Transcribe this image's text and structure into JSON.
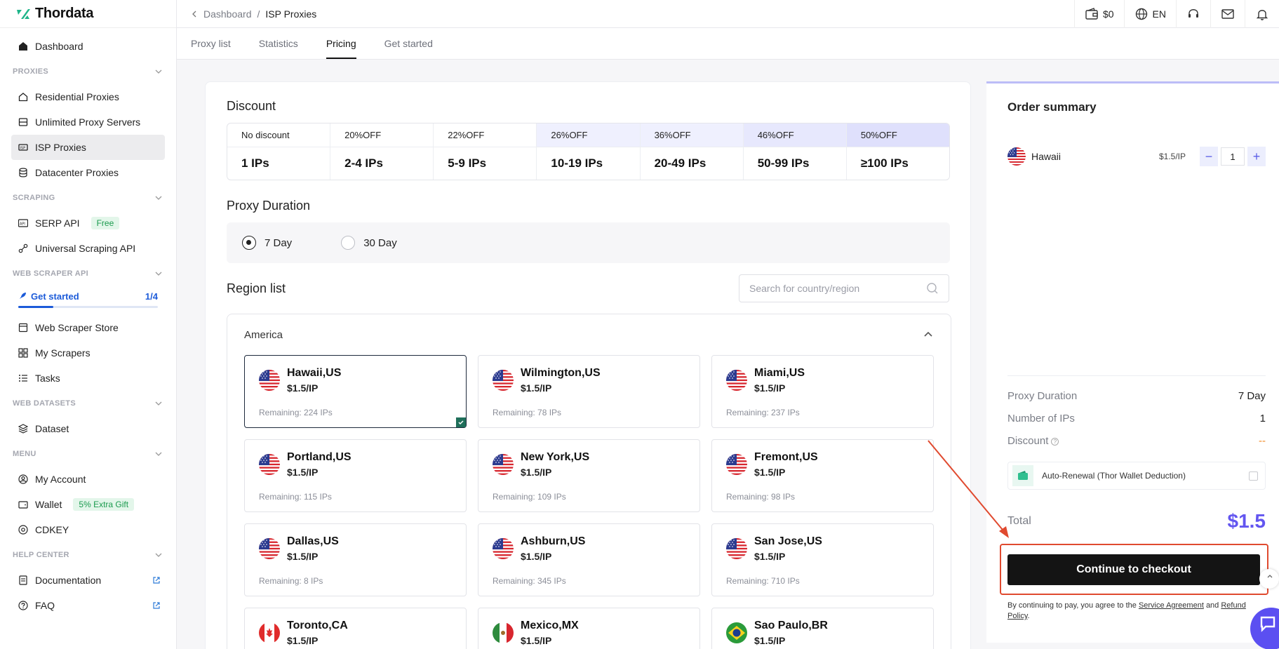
{
  "app": {
    "logo_text": "Thordata"
  },
  "breadcrumb": {
    "parent": "Dashboard",
    "separator": "/",
    "current": "ISP Proxies"
  },
  "topbar": {
    "wallet_amount": "$0",
    "language": "EN"
  },
  "sidebar": {
    "dashboard": "Dashboard",
    "sections": {
      "proxies": "PROXIES",
      "scraping": "SCRAPING",
      "web_scraper_api": "WEB SCRAPER API",
      "web_datasets": "WEB DATASETS",
      "menu": "MENU",
      "help_center": "HELP CENTER"
    },
    "proxies_items": [
      "Residential Proxies",
      "Unlimited Proxy Servers",
      "ISP Proxies",
      "Datacenter Proxies"
    ],
    "scraping_items": [
      "SERP API",
      "Universal Scraping API"
    ],
    "serp_badge": "Free",
    "get_started": {
      "label": "Get started",
      "progress_text": "1/4",
      "progress": 0.25
    },
    "scraper_items": [
      "Web Scraper Store",
      "My Scrapers",
      "Tasks"
    ],
    "dataset_items": [
      "Dataset"
    ],
    "menu_items": [
      "My Account",
      "Wallet",
      "CDKEY"
    ],
    "wallet_badge": "5% Extra Gift",
    "help_items": [
      "Documentation",
      "FAQ"
    ]
  },
  "tabs": [
    "Proxy list",
    "Statistics",
    "Pricing",
    "Get started"
  ],
  "active_tab": "Pricing",
  "discount": {
    "title": "Discount",
    "columns": [
      {
        "head": "No discount",
        "value": "1 IPs"
      },
      {
        "head": "20%OFF",
        "value": "2-4 IPs"
      },
      {
        "head": "22%OFF",
        "value": "5-9 IPs"
      },
      {
        "head": "26%OFF",
        "value": "10-19 IPs"
      },
      {
        "head": "36%OFF",
        "value": "20-49 IPs"
      },
      {
        "head": "46%OFF",
        "value": "50-99 IPs"
      },
      {
        "head": "50%OFF",
        "value": "≥100 IPs"
      }
    ]
  },
  "duration": {
    "title": "Proxy Duration",
    "options": [
      "7 Day",
      "30 Day"
    ],
    "selected": "7 Day"
  },
  "region": {
    "title": "Region list",
    "search_placeholder": "Search for country/region",
    "group": "America",
    "cards": [
      {
        "name": "Hawaii,US",
        "price": "$1.5/IP",
        "remaining": "Remaining: 224 IPs",
        "flag": "us",
        "selected": true
      },
      {
        "name": "Wilmington,US",
        "price": "$1.5/IP",
        "remaining": "Remaining: 78 IPs",
        "flag": "us"
      },
      {
        "name": "Miami,US",
        "price": "$1.5/IP",
        "remaining": "Remaining: 237 IPs",
        "flag": "us"
      },
      {
        "name": "Portland,US",
        "price": "$1.5/IP",
        "remaining": "Remaining: 115 IPs",
        "flag": "us"
      },
      {
        "name": "New York,US",
        "price": "$1.5/IP",
        "remaining": "Remaining: 109 IPs",
        "flag": "us"
      },
      {
        "name": "Fremont,US",
        "price": "$1.5/IP",
        "remaining": "Remaining: 98 IPs",
        "flag": "us"
      },
      {
        "name": "Dallas,US",
        "price": "$1.5/IP",
        "remaining": "Remaining: 8 IPs",
        "flag": "us"
      },
      {
        "name": "Ashburn,US",
        "price": "$1.5/IP",
        "remaining": "Remaining: 345 IPs",
        "flag": "us"
      },
      {
        "name": "San Jose,US",
        "price": "$1.5/IP",
        "remaining": "Remaining: 710 IPs",
        "flag": "us"
      },
      {
        "name": "Toronto,CA",
        "price": "$1.5/IP",
        "remaining": "",
        "flag": "ca"
      },
      {
        "name": "Mexico,MX",
        "price": "$1.5/IP",
        "remaining": "",
        "flag": "mx"
      },
      {
        "name": "Sao Paulo,BR",
        "price": "$1.5/IP",
        "remaining": "",
        "flag": "br"
      }
    ]
  },
  "summary": {
    "title": "Order summary",
    "item": {
      "name": "Hawaii",
      "price": "$1.5/IP",
      "quantity": "1",
      "minus": "−",
      "plus": "+"
    },
    "proxy_duration_label": "Proxy Duration",
    "proxy_duration_value": "7 Day",
    "ips_label": "Number of IPs",
    "ips_value": "1",
    "discount_label": "Discount",
    "discount_value": "--",
    "auto_renewal": "Auto-Renewal (Thor Wallet Deduction)",
    "total_label": "Total",
    "total_value": "$1.5",
    "checkout_label": "Continue to checkout",
    "terms_prefix": "By continuing to pay, you agree to the",
    "terms_link1": "Service Agreement",
    "terms_and": "and",
    "terms_link2": "Refund Policy",
    "terms_suffix": "."
  },
  "colors": {
    "accent": "#6356f0",
    "highlight": "#e04a2f",
    "brand": "#1fb58a"
  }
}
